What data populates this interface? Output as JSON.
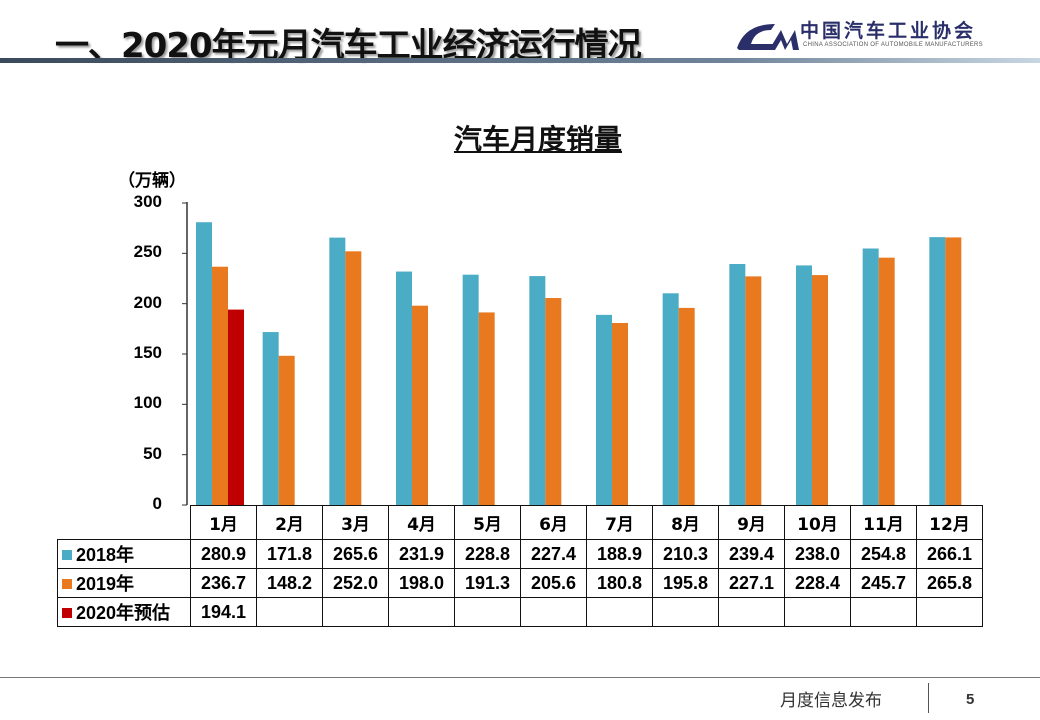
{
  "header": {
    "title": "一、2020年元月汽车工业经济运行情况",
    "logo_cn": "中国汽车工业协会",
    "logo_en": "CHINA ASSOCIATION OF AUTOMOBILE MANUFACTURERS",
    "logo_mark": "CAAM"
  },
  "footer": {
    "text": "月度信息发布",
    "page": "5"
  },
  "chart_data": {
    "type": "bar",
    "title": "汽车月度销量",
    "ylabel": "（万辆）",
    "ylim": [
      0,
      300
    ],
    "yticks": [
      "0",
      "50",
      "100",
      "150",
      "200",
      "250",
      "300"
    ],
    "categories": [
      "1月",
      "2月",
      "3月",
      "4月",
      "5月",
      "6月",
      "7月",
      "8月",
      "9月",
      "10月",
      "11月",
      "12月"
    ],
    "series": [
      {
        "name": "2018年",
        "color": "#4BACC6",
        "values": [
          280.9,
          171.8,
          265.6,
          231.9,
          228.8,
          227.4,
          188.9,
          210.3,
          239.4,
          238.0,
          254.8,
          266.1
        ]
      },
      {
        "name": "2019年",
        "color": "#E8791F",
        "values": [
          236.7,
          148.2,
          252.0,
          198.0,
          191.3,
          205.6,
          180.8,
          195.8,
          227.1,
          228.4,
          245.7,
          265.8
        ]
      },
      {
        "name": "2020年预估",
        "color": "#C00000",
        "values": [
          194.1,
          null,
          null,
          null,
          null,
          null,
          null,
          null,
          null,
          null,
          null,
          null
        ]
      }
    ],
    "table_values": [
      [
        "280.9",
        "171.8",
        "265.6",
        "231.9",
        "228.8",
        "227.4",
        "188.9",
        "210.3",
        "239.4",
        "238.0",
        "254.8",
        "266.1"
      ],
      [
        "236.7",
        "148.2",
        "252.0",
        "198.0",
        "191.3",
        "205.6",
        "180.8",
        "195.8",
        "227.1",
        "228.4",
        "245.7",
        "265.8"
      ],
      [
        "194.1",
        "",
        "",
        "",
        "",
        "",
        "",
        "",
        "",
        "",
        "",
        ""
      ]
    ],
    "grid": false,
    "legend": "data-table"
  }
}
